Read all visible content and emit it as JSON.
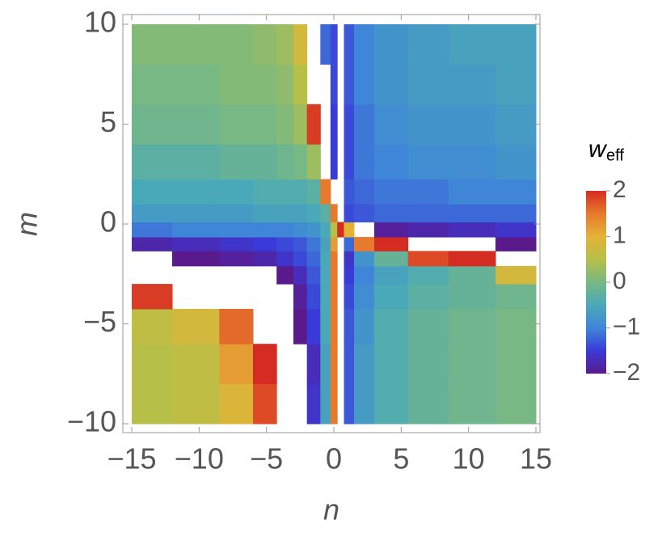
{
  "chart_data": {
    "type": "heatmap",
    "x_label": "n",
    "y_label": "m",
    "xlim": [
      -15,
      15
    ],
    "ylim": [
      -10,
      10
    ],
    "xticks": [
      {
        "value": -15,
        "label": "−15"
      },
      {
        "value": -10,
        "label": "−10"
      },
      {
        "value": -5,
        "label": "−5"
      },
      0,
      5,
      10,
      15
    ],
    "yticks": [
      {
        "value": -10,
        "label": "−10"
      },
      {
        "value": -5,
        "label": "−5"
      },
      0,
      5,
      10
    ],
    "x": [
      -14,
      -10,
      -7,
      -5,
      -3.5,
      -2.5,
      -1.5,
      -0.5,
      0,
      0.5,
      1,
      2,
      4,
      7,
      10,
      14
    ],
    "y": [
      -9,
      -7,
      -5,
      -3.5,
      -2.5,
      -1.7,
      -1,
      -0.3,
      0.5,
      1.5,
      3,
      5,
      7,
      9
    ],
    "z": [
      [
        0.5,
        0.6,
        0.9,
        1.8,
        null,
        null,
        -1.6,
        -0.6,
        1.5,
        null,
        -1.3,
        -0.7,
        -0.4,
        -0.2,
        -0.1,
        0
      ],
      [
        0.5,
        0.6,
        1.2,
        2,
        null,
        null,
        -1.7,
        -0.6,
        1.5,
        null,
        -1.3,
        -0.7,
        -0.4,
        -0.2,
        -0.1,
        0
      ],
      [
        0.6,
        0.8,
        1.6,
        null,
        null,
        -2,
        -1.5,
        -0.5,
        1.5,
        null,
        -1.3,
        -0.8,
        -0.4,
        -0.2,
        -0.1,
        0
      ],
      [
        1.9,
        null,
        null,
        null,
        null,
        -1.9,
        -1.4,
        -0.5,
        1.5,
        null,
        -1.4,
        -0.9,
        -0.5,
        -0.3,
        -0.2,
        -0.1
      ],
      [
        null,
        null,
        null,
        null,
        -2,
        -1.7,
        -1.3,
        -0.5,
        1.5,
        null,
        -1.5,
        -1,
        -0.6,
        -0.4,
        -0.2,
        0.8
      ],
      [
        null,
        -2,
        -1.9,
        -1.8,
        -1.6,
        -1.4,
        -1.2,
        -0.5,
        1.5,
        null,
        -1.6,
        -0.8,
        -0.2,
        1.8,
        2,
        null
      ],
      [
        -1.8,
        -1.7,
        -1.6,
        -1.5,
        -1.4,
        -1.3,
        -1.1,
        -0.6,
        1.2,
        null,
        -1.2,
        1.5,
        2,
        null,
        null,
        -2
      ],
      [
        -1.1,
        -1,
        -1,
        -1,
        -1,
        -0.9,
        -0.8,
        -0.5,
        0.5,
        2,
        1,
        null,
        -1.9,
        -1.8,
        -1.7,
        -1.6
      ],
      [
        -0.7,
        -0.7,
        -0.7,
        -0.6,
        -0.6,
        -0.6,
        -0.5,
        -0.3,
        1.5,
        null,
        -1.4,
        -1.3,
        -1.2,
        -1.2,
        -1.2,
        -1.2
      ],
      [
        -0.5,
        -0.5,
        -0.5,
        -0.4,
        -0.4,
        -0.4,
        -0.3,
        1.5,
        null,
        null,
        -1.3,
        -1.2,
        -1.1,
        -1.1,
        -1,
        -1
      ],
      [
        -0.3,
        -0.3,
        -0.2,
        -0.2,
        -0.1,
        0,
        0.3,
        null,
        -1.5,
        null,
        -1.4,
        -1.1,
        -1,
        -0.9,
        -0.9,
        -0.8
      ],
      [
        -0.1,
        -0.1,
        0,
        0,
        0.1,
        0.3,
        1.9,
        null,
        -1.5,
        null,
        -1.4,
        -1.1,
        -0.9,
        -0.8,
        -0.8,
        -0.7
      ],
      [
        0,
        0,
        0.1,
        0.1,
        0.2,
        0.5,
        null,
        null,
        -1.4,
        null,
        -1.3,
        -1,
        -0.8,
        -0.7,
        -0.7,
        -0.6
      ],
      [
        0.1,
        0.1,
        0.1,
        0.2,
        0.3,
        0.8,
        null,
        -1.2,
        -1.4,
        null,
        -1.3,
        -1,
        -0.8,
        -0.7,
        -0.6,
        -0.6
      ]
    ],
    "colorbar": {
      "label": "w",
      "label_sub": "eff",
      "clim": [
        -2,
        2
      ],
      "ticks": [
        2,
        1,
        0,
        {
          "value": -1,
          "label": "−1"
        },
        {
          "value": -2,
          "label": "−2"
        }
      ],
      "colors": [
        "#5a1a8c",
        "#3a3ad8",
        "#3f86d8",
        "#4aa9b8",
        "#78b884",
        "#b6c048",
        "#e4b236",
        "#e77a2c",
        "#d42c22"
      ]
    }
  }
}
